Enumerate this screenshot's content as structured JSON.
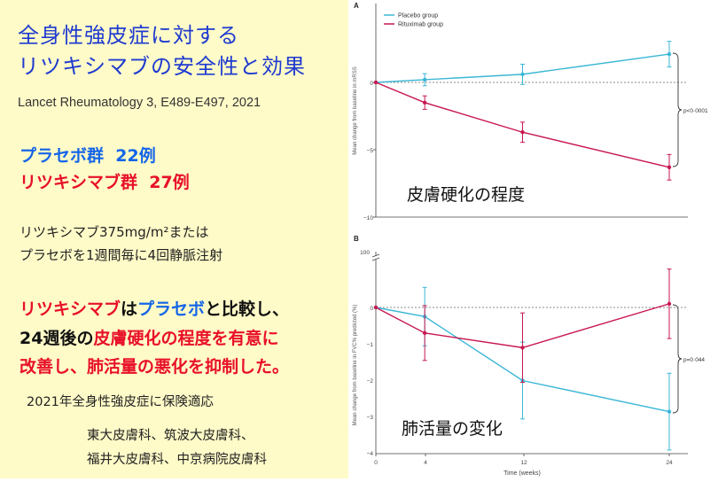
{
  "slide": {
    "title_line1": "全身性強皮症に対する",
    "title_line2": "リツキシマブの安全性と効果",
    "citation": "Lancet Rheumatology  3, E489-E497, 2021",
    "placebo_group": "プラセボ群",
    "placebo_n": "22例",
    "ritux_group": "リツキシマブ群",
    "ritux_n": "27例",
    "dosing_line1": "リツキシマブ375mg/m²または",
    "dosing_line2": "プラセボを1週間毎に4回静脈注射",
    "concl_ritux": "リツキシマブ",
    "concl_ha": "は",
    "concl_placebo": "プラセボ",
    "concl_rest1": "と比較し、",
    "concl_24w": "24週後の",
    "concl_skin": "皮膚硬化の程度を有意に",
    "concl_line3": "改善し、肺活量の悪化を抑制した。",
    "insurance": "2021年全身性強皮症に保険適応",
    "depts_line1": "東大皮膚科、筑波大皮膚科、",
    "depts_line2": "福井大皮膚科、中京病院皮膚科",
    "colors": {
      "placebo": "#3bb7d6",
      "rituximab": "#c8174f",
      "title_blue": "#1f3bd0",
      "text_red": "#e8102a"
    }
  },
  "chart_data": [
    {
      "type": "line",
      "panel_label": "A",
      "annotation": "皮膚硬化の程度",
      "ylabel": "Mean change from baseline in mRSS",
      "xlabel": "",
      "x": [
        0,
        4,
        12,
        24
      ],
      "xlim": [
        0,
        24
      ],
      "ylim": [
        -10,
        3
      ],
      "yticks": [
        "0",
        "−5",
        "−10"
      ],
      "ytick_values": [
        0,
        -5,
        -10
      ],
      "legend": "top-left",
      "series": [
        {
          "name": "Placebo group",
          "color": "#3bb7d6",
          "values": [
            0,
            0.2,
            0.6,
            2.1
          ],
          "err": [
            0,
            0.45,
            0.75,
            0.95
          ]
        },
        {
          "name": "Rituximab group",
          "color": "#c8174f",
          "values": [
            0,
            -1.5,
            -3.7,
            -6.3
          ],
          "err": [
            0,
            0.5,
            0.75,
            0.95
          ]
        }
      ],
      "p_value": "p<0·0001"
    },
    {
      "type": "line",
      "panel_label": "B",
      "annotation": "肺活量の変化",
      "ylabel": "Mean change from baseline in FVC% predicted (%)",
      "xlabel": "Time (weeks)",
      "x": [
        0,
        4,
        12,
        24
      ],
      "x_ticks": [
        "0",
        "4",
        "12",
        "24"
      ],
      "xlim": [
        0,
        24
      ],
      "ylim": [
        -4,
        0.9
      ],
      "yticks": [
        "100",
        "0",
        "−1",
        "−2",
        "−3",
        "−4"
      ],
      "axis_break": true,
      "series": [
        {
          "name": "Placebo",
          "color": "#3bb7d6",
          "values": [
            0,
            -0.25,
            -2.0,
            -2.85
          ],
          "err": [
            0,
            0.8,
            1.05,
            1.05
          ]
        },
        {
          "name": "Rituximab",
          "color": "#c8174f",
          "values": [
            0,
            -0.7,
            -1.1,
            0.1
          ],
          "err": [
            0,
            0.75,
            0.95,
            0.95
          ]
        }
      ],
      "p_value": "p=0·044"
    }
  ]
}
